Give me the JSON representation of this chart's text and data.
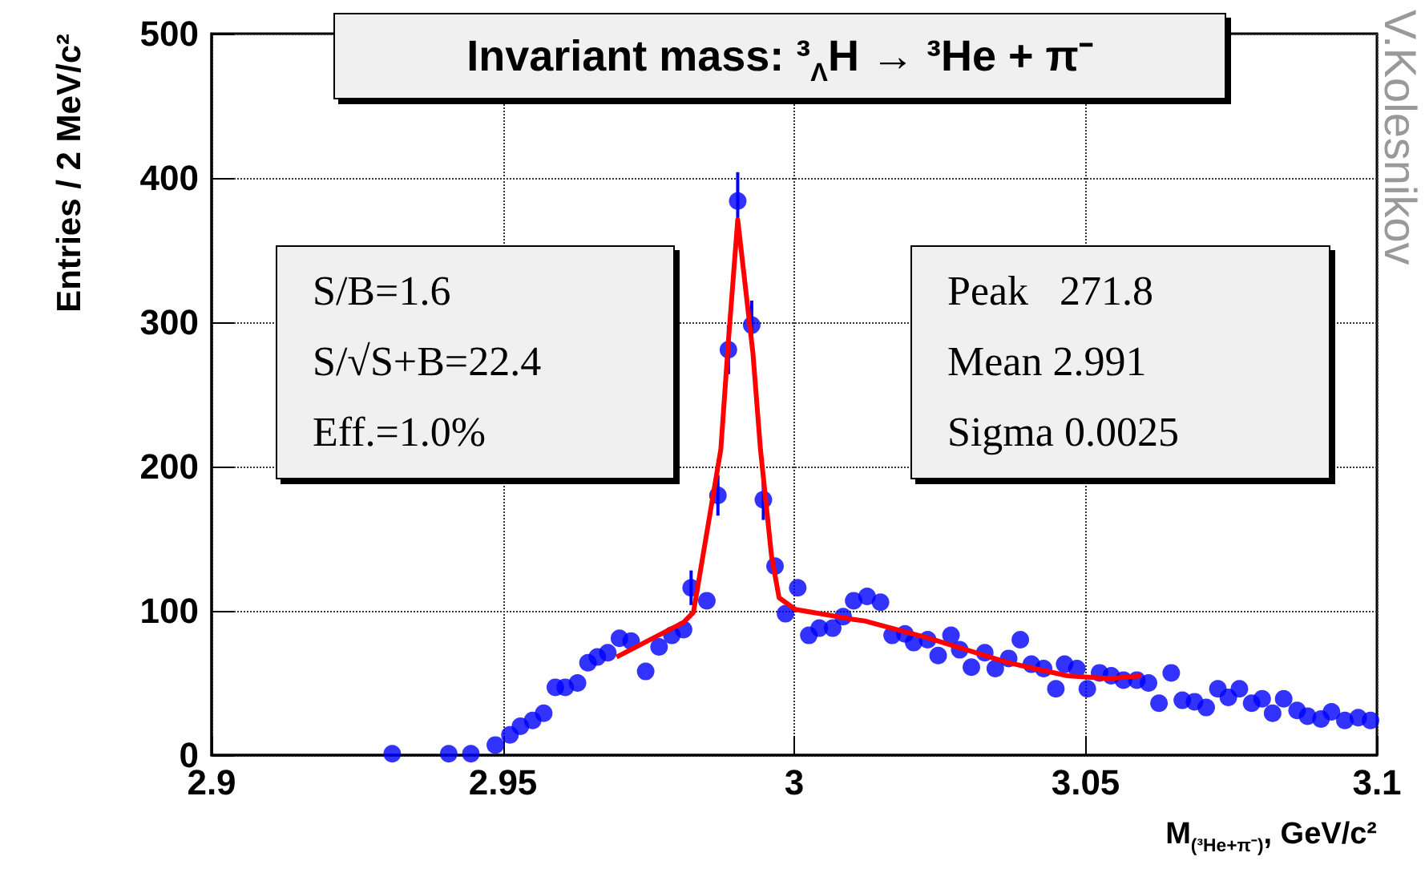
{
  "chart_data": {
    "type": "scatter",
    "title": "Invariant mass: ³$_{Λ}$H → ³He + π⁻",
    "xlabel": "M$_{(³He+π⁻)}$, GeV/c²",
    "ylabel": "Entries / 2 MeV/c²",
    "xlim": [
      2.9,
      3.1
    ],
    "xticks": [
      2.9,
      2.95,
      3,
      3.05,
      3.1
    ],
    "ylim": [
      0,
      500
    ],
    "yticks": [
      0,
      100,
      200,
      300,
      400,
      500
    ],
    "grid": true,
    "marker": "circle",
    "annotations": [
      "S/B=1.6",
      "S/√S+B=22.4",
      "Eff.=1.0%",
      "Peak   271.8",
      "Mean 2.991",
      "Sigma 0.0025",
      "V.Kolesnikov"
    ],
    "series": [
      {
        "color": "#0000ff",
        "x": [
          2.931,
          2.9407,
          2.9445,
          2.9487,
          2.9512,
          2.953,
          2.9551,
          2.957,
          2.959,
          2.9607,
          2.9628,
          2.9646,
          2.9662,
          2.968,
          2.97,
          2.972,
          2.9745,
          2.9768,
          2.979,
          2.981,
          2.9823,
          2.985,
          2.9869,
          2.9887,
          2.9903,
          2.9927,
          2.9947,
          2.9967,
          2.9985,
          3.0006,
          3.0025,
          3.0043,
          3.0066,
          3.0084,
          3.0102,
          3.0125,
          3.0148,
          3.0168,
          3.019,
          3.0205,
          3.0229,
          3.0247,
          3.0269,
          3.0284,
          3.0304,
          3.0327,
          3.0345,
          3.0368,
          3.0388,
          3.0407,
          3.0428,
          3.0449,
          3.0464,
          3.0485,
          3.0503,
          3.0524,
          3.0544,
          3.0565,
          3.0588,
          3.0608,
          3.0626,
          3.0647,
          3.0666,
          3.0687,
          3.0707,
          3.0727,
          3.0745,
          3.0764,
          3.0785,
          3.0803,
          3.0821,
          3.084,
          3.0863,
          3.0881,
          3.0904,
          3.0922,
          3.0945,
          3.0968,
          3.0989
        ],
        "values": [
          1,
          1,
          1,
          7,
          14,
          20,
          24,
          29,
          47,
          47,
          50,
          64,
          68,
          71,
          81,
          79,
          58,
          75,
          83,
          87,
          116,
          107,
          180,
          281,
          384,
          298,
          177,
          131,
          98,
          116,
          83,
          88,
          88,
          96,
          107,
          110,
          106,
          83,
          84,
          78,
          80,
          69,
          83,
          73,
          61,
          71,
          60,
          67,
          80,
          63,
          60,
          46,
          63,
          60,
          46,
          57,
          55,
          52,
          52,
          50,
          36,
          57,
          38,
          37,
          33,
          46,
          40,
          46,
          36,
          39,
          29,
          39,
          31,
          27,
          25,
          30,
          24,
          26,
          24
        ],
        "errors": [
          null,
          null,
          null,
          null,
          null,
          null,
          null,
          null,
          null,
          null,
          null,
          null,
          null,
          null,
          null,
          null,
          null,
          null,
          null,
          null,
          12,
          null,
          14,
          17,
          20,
          17,
          14,
          null,
          null,
          null,
          null,
          null,
          null,
          null,
          null,
          null,
          null,
          null,
          null,
          null,
          null,
          null,
          null,
          null,
          null,
          null,
          null,
          null,
          null,
          null,
          null,
          null,
          null,
          null,
          null,
          null,
          null,
          null,
          null,
          null,
          null,
          null,
          null,
          null,
          null,
          null,
          null,
          null,
          null,
          null,
          null,
          null,
          null,
          null,
          null,
          null,
          null,
          null,
          null
        ]
      },
      {
        "type": "line",
        "color": "#ff0000",
        "marker": "none",
        "x": [
          2.9695,
          2.981,
          2.9827,
          2.9874,
          2.9887,
          2.9903,
          2.9929,
          2.9942,
          2.9961,
          2.9974,
          3.0002,
          3.0102,
          3.0121,
          3.0231,
          3.0368,
          3.0469,
          3.0541,
          3.0596
        ],
        "values": [
          68,
          92,
          99,
          212,
          287,
          371,
          279,
          212,
          138,
          109,
          101,
          94,
          93,
          81,
          64,
          55,
          53,
          55
        ]
      }
    ]
  }
}
